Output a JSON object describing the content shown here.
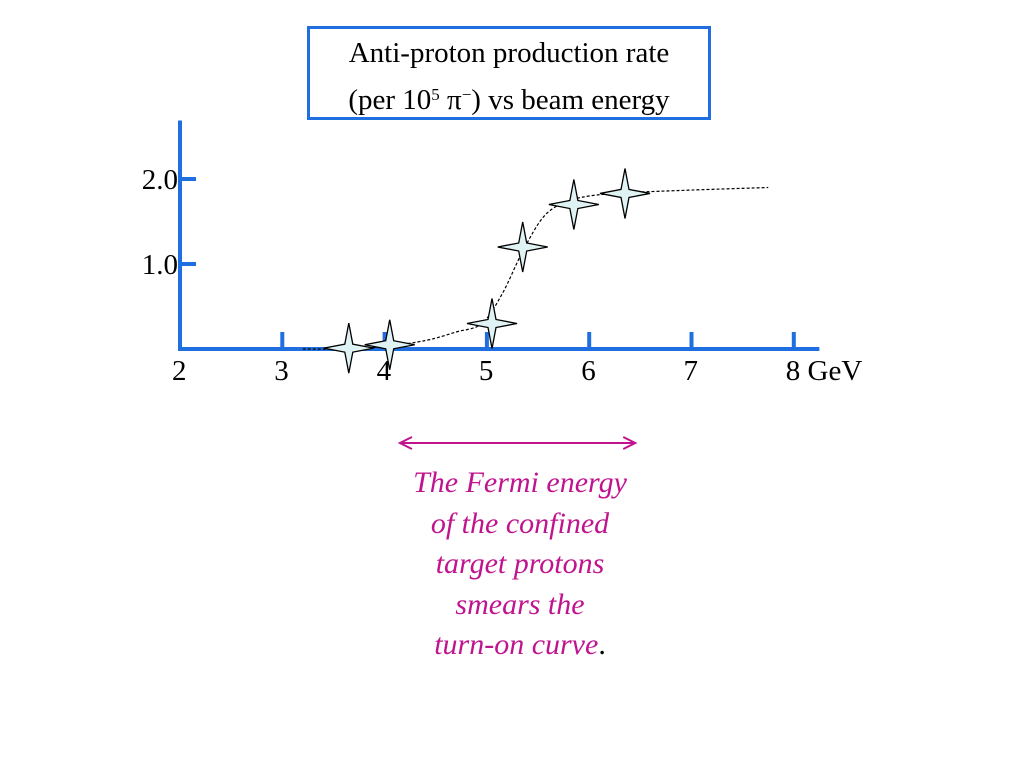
{
  "title": {
    "line1": "Anti-proton production rate",
    "line2_prefix": "(per 10",
    "line2_sup": "5",
    "line2_mid": " π",
    "line2_sup2": "−",
    "line2_suffix": ") vs beam energy"
  },
  "caption": {
    "lines": [
      "The Fermi energy",
      "of the confined",
      "target protons",
      "smears the",
      "turn-on curve"
    ],
    "period": "."
  },
  "colors": {
    "axis": "#1f6fe0",
    "caption": "#c0148f",
    "marker_fill": "#dff3f4",
    "curve": "#000000"
  },
  "chart_data": {
    "type": "scatter",
    "x_unit": "GeV",
    "x_ticks": [
      2,
      3,
      4,
      5,
      6,
      7,
      8
    ],
    "x_tick_labels": [
      "2",
      "3",
      "4",
      "5",
      "6",
      "7",
      "8 GeV"
    ],
    "y_ticks": [
      1.0,
      2.0
    ],
    "y_tick_labels": [
      "1.0",
      "2.0"
    ],
    "xlim": [
      2,
      8.25
    ],
    "ylim": [
      0,
      2.7
    ],
    "points": [
      {
        "x": 3.65,
        "y": 0.01
      },
      {
        "x": 4.05,
        "y": 0.05
      },
      {
        "x": 5.05,
        "y": 0.3
      },
      {
        "x": 5.35,
        "y": 1.2
      },
      {
        "x": 5.85,
        "y": 1.7
      },
      {
        "x": 6.35,
        "y": 1.83
      }
    ],
    "curve": [
      [
        3.2,
        0.0
      ],
      [
        3.6,
        0.0
      ],
      [
        4.0,
        0.03
      ],
      [
        4.4,
        0.1
      ],
      [
        4.7,
        0.2
      ],
      [
        4.95,
        0.3
      ],
      [
        5.15,
        0.65
      ],
      [
        5.35,
        1.15
      ],
      [
        5.55,
        1.55
      ],
      [
        5.75,
        1.72
      ],
      [
        6.0,
        1.8
      ],
      [
        6.4,
        1.84
      ],
      [
        7.0,
        1.87
      ],
      [
        7.75,
        1.9
      ]
    ],
    "fermi_arrow": {
      "x_start": 4.15,
      "x_end": 6.45
    }
  }
}
